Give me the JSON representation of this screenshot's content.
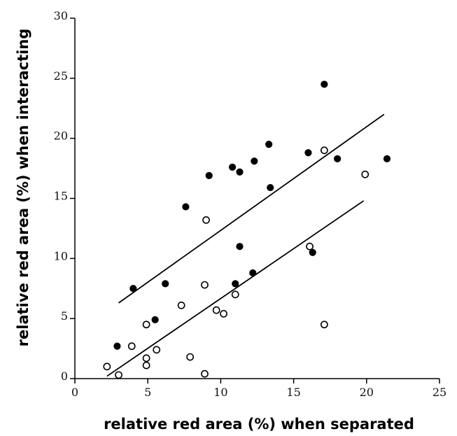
{
  "chart_data": {
    "type": "scatter",
    "title": "",
    "xlabel": "relative red area (%) when separated",
    "ylabel": "relative red area (%) when interacting",
    "xlim": [
      0,
      25
    ],
    "ylim": [
      0,
      30
    ],
    "x_ticks": [
      "0",
      "5",
      "10",
      "15",
      "20",
      "25"
    ],
    "y_ticks": [
      "0",
      "5",
      "10",
      "15",
      "20",
      "25",
      "30"
    ],
    "grid": false,
    "legend": "none",
    "series": [
      {
        "marker": "filled-circle",
        "color": "#000000",
        "points": [
          [
            2.9,
            2.7
          ],
          [
            4.0,
            7.5
          ],
          [
            5.5,
            4.9
          ],
          [
            6.2,
            7.9
          ],
          [
            7.6,
            14.3
          ],
          [
            9.2,
            16.9
          ],
          [
            10.8,
            17.6
          ],
          [
            11.3,
            17.2
          ],
          [
            11.3,
            11.0
          ],
          [
            11.0,
            7.9
          ],
          [
            12.2,
            8.8
          ],
          [
            12.3,
            18.1
          ],
          [
            13.3,
            19.5
          ],
          [
            13.4,
            15.9
          ],
          [
            16.0,
            18.8
          ],
          [
            16.3,
            10.5
          ],
          [
            17.1,
            24.5
          ],
          [
            18.0,
            18.3
          ],
          [
            21.4,
            18.3
          ]
        ],
        "trendline": [
          [
            3.0,
            6.3
          ],
          [
            21.2,
            22.0
          ]
        ]
      },
      {
        "marker": "open-circle",
        "color": "#000000",
        "points": [
          [
            2.2,
            1.0
          ],
          [
            3.0,
            0.3
          ],
          [
            3.9,
            2.7
          ],
          [
            4.9,
            4.5
          ],
          [
            4.9,
            1.7
          ],
          [
            4.9,
            1.1
          ],
          [
            5.6,
            2.4
          ],
          [
            7.3,
            6.1
          ],
          [
            7.9,
            1.8
          ],
          [
            8.9,
            7.8
          ],
          [
            8.9,
            0.4
          ],
          [
            9.0,
            13.2
          ],
          [
            9.7,
            5.7
          ],
          [
            10.2,
            5.4
          ],
          [
            11.0,
            7.0
          ],
          [
            16.1,
            11.0
          ],
          [
            17.1,
            19.0
          ],
          [
            17.1,
            4.5
          ],
          [
            19.9,
            17.0
          ]
        ],
        "trendline": [
          [
            2.2,
            0.2
          ],
          [
            19.8,
            14.8
          ]
        ]
      }
    ]
  }
}
